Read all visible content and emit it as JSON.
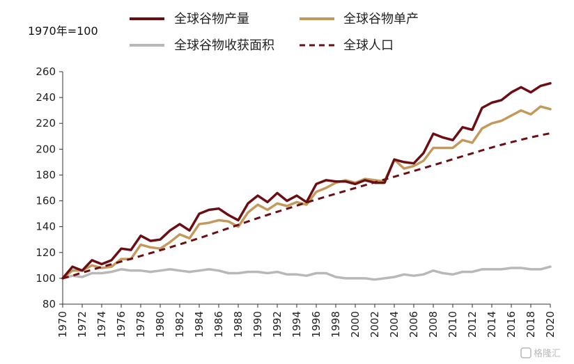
{
  "chart_data": {
    "type": "line",
    "note": "1970年=100",
    "ylim": [
      80,
      260
    ],
    "yticks": [
      80,
      100,
      120,
      140,
      160,
      180,
      200,
      220,
      240,
      260
    ],
    "xlim": [
      1970,
      2020
    ],
    "xticks": [
      1970,
      1972,
      1974,
      1976,
      1978,
      1980,
      1982,
      1984,
      1986,
      1988,
      1990,
      1992,
      1994,
      1996,
      1998,
      2000,
      2002,
      2004,
      2006,
      2008,
      2010,
      2012,
      2014,
      2016,
      2018,
      2020
    ],
    "grid": false,
    "legend_position": "top",
    "x": [
      1970,
      1971,
      1972,
      1973,
      1974,
      1975,
      1976,
      1977,
      1978,
      1979,
      1980,
      1981,
      1982,
      1983,
      1984,
      1985,
      1986,
      1987,
      1988,
      1989,
      1990,
      1991,
      1992,
      1993,
      1994,
      1995,
      1996,
      1997,
      1998,
      1999,
      2000,
      2001,
      2002,
      2003,
      2004,
      2005,
      2006,
      2007,
      2008,
      2009,
      2010,
      2011,
      2012,
      2013,
      2014,
      2015,
      2016,
      2017,
      2018,
      2019,
      2020
    ],
    "series": [
      {
        "name": "全球谷物产量",
        "color": "#6b0e14",
        "dashed": false,
        "values": [
          100,
          109,
          106,
          114,
          111,
          114,
          123,
          122,
          133,
          129,
          130,
          137,
          142,
          137,
          150,
          153,
          154,
          149,
          145,
          158,
          164,
          159,
          166,
          160,
          164,
          159,
          173,
          176,
          175,
          175,
          173,
          176,
          174,
          174,
          192,
          190,
          189,
          197,
          212,
          209,
          207,
          217,
          215,
          232,
          236,
          238,
          244,
          248,
          244,
          249,
          251
        ]
      },
      {
        "name": "全球谷物单产",
        "color": "#c39a5c",
        "dashed": false,
        "values": [
          100,
          106,
          106,
          110,
          108,
          109,
          115,
          115,
          126,
          124,
          123,
          128,
          134,
          131,
          142,
          143,
          145,
          144,
          140,
          151,
          157,
          153,
          158,
          156,
          159,
          157,
          167,
          170,
          174,
          176,
          174,
          177,
          176,
          175,
          192,
          185,
          187,
          191,
          201,
          201,
          201,
          207,
          205,
          216,
          220,
          222,
          226,
          230,
          227,
          233,
          231
        ]
      },
      {
        "name": "全球谷物收获面积",
        "color": "#b8b8b8",
        "dashed": false,
        "values": [
          100,
          102,
          101,
          104,
          104,
          105,
          107,
          106,
          106,
          105,
          106,
          107,
          106,
          105,
          106,
          107,
          106,
          104,
          104,
          105,
          105,
          104,
          105,
          103,
          103,
          102,
          104,
          104,
          101,
          100,
          100,
          100,
          99,
          100,
          101,
          103,
          102,
          103,
          106,
          104,
          103,
          105,
          105,
          107,
          107,
          107,
          108,
          108,
          107,
          107,
          109
        ]
      },
      {
        "name": "全球人口",
        "color": "#6b0e14",
        "dashed": true,
        "values": [
          100,
          102,
          104.4,
          106.6,
          108.8,
          110.9,
          113,
          115.1,
          117.3,
          119.5,
          121.7,
          124,
          126.3,
          128.7,
          131.1,
          133.6,
          136.2,
          138.8,
          141.4,
          144,
          146.6,
          149.1,
          151.5,
          153.9,
          156.3,
          158.7,
          161,
          163.3,
          165.5,
          167.7,
          169.9,
          172.1,
          174.3,
          176.5,
          178.7,
          180.9,
          183.1,
          185.3,
          187.6,
          189.9,
          192.2,
          194.5,
          196.8,
          199.1,
          201.3,
          203.4,
          205.4,
          207.3,
          209.1,
          210.8,
          212.3
        ]
      }
    ]
  },
  "watermark": "格隆汇"
}
